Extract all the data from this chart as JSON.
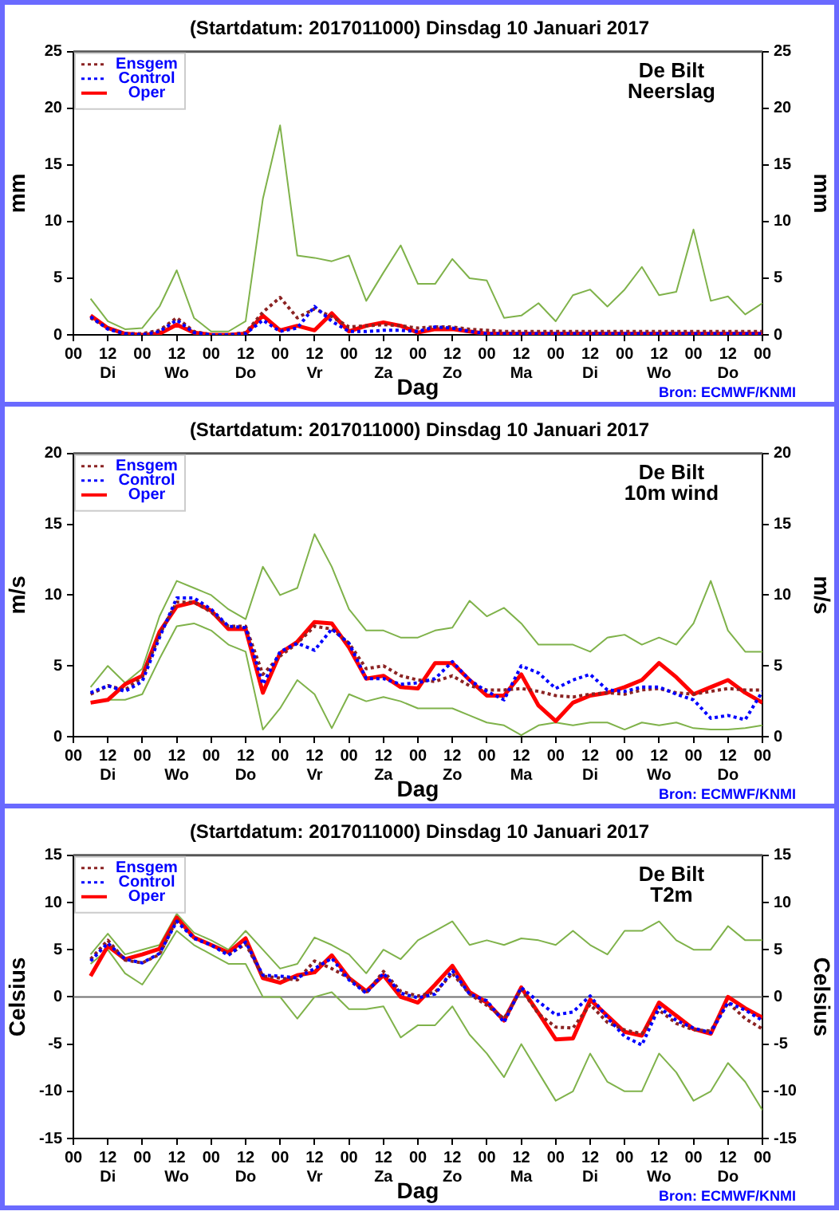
{
  "chart_data": [
    {
      "type": "line",
      "title": "(Startdatum: 2017011000) Dinsdag 10 Januari 2017",
      "xlabel": "Dag",
      "ylabel": "mm",
      "y2label": "mm",
      "annotations": [
        "De Bilt",
        "Neerslag",
        "Bron: ECMWF/KNMI"
      ],
      "x": [
        "2017-01-10T06:00",
        "2017-01-10T12:00",
        "2017-01-10T18:00",
        "2017-01-11T00:00",
        "2017-01-11T06:00",
        "2017-01-11T12:00",
        "2017-01-11T18:00",
        "2017-01-12T00:00",
        "2017-01-12T06:00",
        "2017-01-12T12:00",
        "2017-01-12T18:00",
        "2017-01-13T00:00",
        "2017-01-13T06:00",
        "2017-01-13T12:00",
        "2017-01-13T18:00",
        "2017-01-14T00:00",
        "2017-01-14T06:00",
        "2017-01-14T12:00",
        "2017-01-14T18:00",
        "2017-01-15T00:00",
        "2017-01-15T06:00",
        "2017-01-15T12:00",
        "2017-01-15T18:00",
        "2017-01-16T00:00",
        "2017-01-16T06:00",
        "2017-01-16T12:00",
        "2017-01-16T18:00",
        "2017-01-17T00:00",
        "2017-01-17T06:00",
        "2017-01-17T12:00",
        "2017-01-17T18:00",
        "2017-01-18T00:00",
        "2017-01-18T06:00",
        "2017-01-18T12:00",
        "2017-01-18T18:00",
        "2017-01-19T00:00",
        "2017-01-19T06:00",
        "2017-01-19T12:00",
        "2017-01-19T18:00",
        "2017-01-20T00:00"
      ],
      "xlim": [
        "2017-01-10T00:00",
        "2017-01-20T00:00"
      ],
      "xticks": [
        {
          "value": "2017-01-10T00:00",
          "label": "00"
        },
        {
          "value": "2017-01-10T12:00",
          "label": "12\nDi"
        },
        {
          "value": "2017-01-11T00:00",
          "label": "00"
        },
        {
          "value": "2017-01-11T12:00",
          "label": "12\nWo"
        },
        {
          "value": "2017-01-12T00:00",
          "label": "00"
        },
        {
          "value": "2017-01-12T12:00",
          "label": "12\nDo"
        },
        {
          "value": "2017-01-13T00:00",
          "label": "00"
        },
        {
          "value": "2017-01-13T12:00",
          "label": "12\nVr"
        },
        {
          "value": "2017-01-14T00:00",
          "label": "00"
        },
        {
          "value": "2017-01-14T12:00",
          "label": "12\nZa"
        },
        {
          "value": "2017-01-15T00:00",
          "label": "00"
        },
        {
          "value": "2017-01-15T12:00",
          "label": "12\nZo"
        },
        {
          "value": "2017-01-16T00:00",
          "label": "00"
        },
        {
          "value": "2017-01-16T12:00",
          "label": "12\nMa"
        },
        {
          "value": "2017-01-17T00:00",
          "label": "00"
        },
        {
          "value": "2017-01-17T12:00",
          "label": "12\nDi"
        },
        {
          "value": "2017-01-18T00:00",
          "label": "00"
        },
        {
          "value": "2017-01-18T12:00",
          "label": "12\nWo"
        },
        {
          "value": "2017-01-19T00:00",
          "label": "00"
        },
        {
          "value": "2017-01-19T12:00",
          "label": "12\nDo"
        },
        {
          "value": "2017-01-20T00:00",
          "label": "00"
        }
      ],
      "ylim": [
        0,
        25
      ],
      "yticks": [
        0,
        5,
        10,
        15,
        20,
        25
      ],
      "y2lim": [
        0,
        25
      ],
      "y2ticks": [
        0,
        5,
        10,
        15,
        20,
        25
      ],
      "grid": false,
      "legend": "top left",
      "marker": "none",
      "series": [
        {
          "color": "#7fb24a",
          "line_style": "solid",
          "values": [
            3.2,
            1.2,
            0.5,
            0.6,
            2.5,
            5.7,
            1.5,
            0.3,
            0.3,
            1.2,
            12.0,
            18.5,
            7.0,
            6.8,
            6.5,
            7.0,
            3.0,
            5.5,
            7.9,
            4.5,
            4.5,
            6.7,
            5.0,
            4.8,
            1.5,
            1.7,
            2.8,
            1.2,
            3.5,
            4.0,
            2.5,
            4.0,
            6.0,
            3.5,
            3.8,
            9.3,
            3.0,
            3.4,
            1.8,
            2.8
          ]
        },
        {
          "name": "Ensgem",
          "color": "#8b2323",
          "line_style": "dotted",
          "values": [
            1.5,
            0.6,
            0.1,
            0.1,
            0.4,
            1.5,
            0.3,
            0,
            0,
            0.2,
            2.0,
            3.3,
            1.5,
            2.3,
            1.6,
            0.7,
            0.8,
            0.9,
            0.8,
            0.6,
            0.7,
            0.7,
            0.5,
            0.4,
            0.3,
            0.3,
            0.3,
            0.3,
            0.3,
            0.3,
            0.3,
            0.3,
            0.3,
            0.3,
            0.3,
            0.3,
            0.3,
            0.3,
            0.3,
            0.3
          ]
        },
        {
          "name": "Control",
          "color": "#0000ff",
          "line_style": "dotted",
          "values": [
            1.6,
            0.5,
            0.1,
            0,
            0.3,
            1.3,
            0.2,
            0,
            0,
            0.1,
            1.3,
            0.3,
            0.6,
            2.5,
            1.2,
            0.3,
            0.3,
            0.4,
            0.4,
            0.3,
            0.7,
            0.6,
            0.3,
            0.1,
            0.1,
            0.1,
            0.1,
            0.1,
            0.1,
            0.1,
            0.1,
            0.1,
            0.1,
            0.1,
            0.1,
            0.1,
            0.1,
            0.1,
            0.1,
            0.1
          ]
        },
        {
          "name": "Oper",
          "color": "#ff0000",
          "line_style": "solid",
          "values": [
            1.7,
            0.6,
            0.1,
            0,
            0.1,
            0.9,
            0.2,
            0,
            0,
            0.1,
            1.7,
            0.4,
            0.8,
            0.4,
            1.9,
            0.3,
            0.8,
            1.1,
            0.8,
            0.2,
            0.5,
            0.5,
            0.3,
            0.1,
            0.1,
            0.1,
            0.1,
            0.1,
            0.1,
            0.1,
            0.1,
            0.1,
            0.1,
            0.1,
            0.1,
            0.1,
            0.1,
            0.1,
            0.1,
            0.1
          ]
        }
      ]
    },
    {
      "type": "line",
      "title": "(Startdatum: 2017011000) Dinsdag 10 Januari 2017",
      "xlabel": "Dag",
      "ylabel": "m/s",
      "y2label": "m/s",
      "annotations": [
        "De Bilt",
        "10m wind",
        "Bron: ECMWF/KNMI"
      ],
      "x": [
        "2017-01-10T06:00",
        "2017-01-10T12:00",
        "2017-01-10T18:00",
        "2017-01-11T00:00",
        "2017-01-11T06:00",
        "2017-01-11T12:00",
        "2017-01-11T18:00",
        "2017-01-12T00:00",
        "2017-01-12T06:00",
        "2017-01-12T12:00",
        "2017-01-12T18:00",
        "2017-01-13T00:00",
        "2017-01-13T06:00",
        "2017-01-13T12:00",
        "2017-01-13T18:00",
        "2017-01-14T00:00",
        "2017-01-14T06:00",
        "2017-01-14T12:00",
        "2017-01-14T18:00",
        "2017-01-15T00:00",
        "2017-01-15T06:00",
        "2017-01-15T12:00",
        "2017-01-15T18:00",
        "2017-01-16T00:00",
        "2017-01-16T06:00",
        "2017-01-16T12:00",
        "2017-01-16T18:00",
        "2017-01-17T00:00",
        "2017-01-17T06:00",
        "2017-01-17T12:00",
        "2017-01-17T18:00",
        "2017-01-18T00:00",
        "2017-01-18T06:00",
        "2017-01-18T12:00",
        "2017-01-18T18:00",
        "2017-01-19T00:00",
        "2017-01-19T06:00",
        "2017-01-19T12:00",
        "2017-01-19T18:00",
        "2017-01-20T00:00"
      ],
      "xlim": [
        "2017-01-10T00:00",
        "2017-01-20T00:00"
      ],
      "xticks": [
        {
          "value": "2017-01-10T00:00",
          "label": "00"
        },
        {
          "value": "2017-01-10T12:00",
          "label": "12\nDi"
        },
        {
          "value": "2017-01-11T00:00",
          "label": "00"
        },
        {
          "value": "2017-01-11T12:00",
          "label": "12\nWo"
        },
        {
          "value": "2017-01-12T00:00",
          "label": "00"
        },
        {
          "value": "2017-01-12T12:00",
          "label": "12\nDo"
        },
        {
          "value": "2017-01-13T00:00",
          "label": "00"
        },
        {
          "value": "2017-01-13T12:00",
          "label": "12\nVr"
        },
        {
          "value": "2017-01-14T00:00",
          "label": "00"
        },
        {
          "value": "2017-01-14T12:00",
          "label": "12\nZa"
        },
        {
          "value": "2017-01-15T00:00",
          "label": "00"
        },
        {
          "value": "2017-01-15T12:00",
          "label": "12\nZo"
        },
        {
          "value": "2017-01-16T00:00",
          "label": "00"
        },
        {
          "value": "2017-01-16T12:00",
          "label": "12\nMa"
        },
        {
          "value": "2017-01-17T00:00",
          "label": "00"
        },
        {
          "value": "2017-01-17T12:00",
          "label": "12\nDi"
        },
        {
          "value": "2017-01-18T00:00",
          "label": "00"
        },
        {
          "value": "2017-01-18T12:00",
          "label": "12\nWo"
        },
        {
          "value": "2017-01-19T00:00",
          "label": "00"
        },
        {
          "value": "2017-01-19T12:00",
          "label": "12\nDo"
        },
        {
          "value": "2017-01-20T00:00",
          "label": "00"
        }
      ],
      "ylim": [
        0,
        20
      ],
      "yticks": [
        0,
        5,
        10,
        15,
        20
      ],
      "y2lim": [
        0,
        20
      ],
      "y2ticks": [
        0,
        5,
        10,
        15,
        20
      ],
      "grid": false,
      "legend": "top left",
      "marker": "none",
      "series": [
        {
          "color": "#7fb24a",
          "line_style": "solid",
          "values": [
            3.5,
            5.0,
            3.8,
            4.8,
            8.5,
            11.0,
            10.5,
            10.0,
            9.0,
            8.3,
            12.0,
            10.0,
            10.5,
            14.3,
            12.0,
            9.0,
            7.5,
            7.5,
            7.0,
            7.0,
            7.5,
            7.7,
            9.6,
            8.5,
            9.1,
            8.0,
            6.5,
            6.5,
            6.5,
            6.0,
            7.0,
            7.2,
            6.5,
            7.0,
            6.5,
            8.0,
            11.0,
            7.5,
            6.0,
            6.0
          ]
        },
        {
          "color": "#7fb24a",
          "line_style": "solid",
          "values": [
            null,
            2.6,
            2.6,
            3.0,
            5.5,
            7.8,
            8.0,
            7.5,
            6.5,
            6.0,
            0.5,
            2.0,
            4.0,
            3.0,
            0.6,
            3.0,
            2.5,
            2.8,
            2.5,
            2.0,
            2.0,
            2.0,
            1.5,
            1.0,
            0.8,
            0.1,
            0.8,
            1.0,
            0.8,
            1.0,
            1.0,
            0.5,
            1.0,
            0.8,
            1.0,
            0.6,
            0.5,
            0.5,
            0.6,
            0.8
          ]
        },
        {
          "name": "Ensgem",
          "color": "#8b2323",
          "line_style": "dotted",
          "values": [
            3.0,
            3.6,
            3.3,
            4.2,
            7.2,
            9.5,
            9.5,
            8.8,
            7.8,
            7.8,
            4.4,
            5.7,
            6.6,
            7.8,
            7.6,
            6.6,
            4.8,
            5.0,
            4.3,
            4.0,
            3.9,
            4.3,
            3.6,
            3.3,
            3.3,
            3.4,
            3.2,
            2.9,
            2.8,
            3.0,
            3.1,
            3.0,
            3.3,
            3.4,
            3.1,
            3.0,
            3.2,
            3.4,
            3.3,
            3.3
          ]
        },
        {
          "name": "Control",
          "color": "#0000ff",
          "line_style": "dotted",
          "values": [
            3.1,
            3.6,
            3.2,
            3.9,
            7.0,
            9.8,
            9.8,
            9.0,
            7.8,
            7.7,
            3.7,
            6.0,
            6.6,
            6.1,
            7.6,
            6.6,
            4.1,
            4.1,
            3.7,
            3.8,
            4.1,
            5.3,
            4.0,
            3.2,
            2.6,
            5.0,
            4.5,
            3.4,
            4.0,
            4.4,
            3.3,
            3.2,
            3.5,
            3.5,
            3.0,
            2.6,
            1.3,
            1.5,
            1.2,
            3.2
          ]
        },
        {
          "name": "Oper",
          "color": "#ff0000",
          "line_style": "solid",
          "values": [
            2.4,
            2.6,
            3.7,
            4.3,
            7.4,
            9.2,
            9.5,
            8.9,
            7.6,
            7.6,
            3.1,
            5.9,
            6.7,
            8.1,
            8.0,
            6.3,
            4.1,
            4.3,
            3.5,
            3.4,
            5.2,
            5.2,
            4.0,
            2.9,
            2.9,
            4.4,
            2.2,
            1.1,
            2.4,
            2.9,
            3.1,
            3.5,
            4.0,
            5.2,
            4.2,
            3.0,
            3.5,
            4.0,
            3.1,
            2.4
          ]
        }
      ]
    },
    {
      "type": "line",
      "title": "(Startdatum: 2017011000) Dinsdag 10 Januari 2017",
      "xlabel": "Dag",
      "ylabel": "Celsius",
      "y2label": "Celsius",
      "annotations": [
        "De Bilt",
        "T2m",
        "Bron: ECMWF/KNMI"
      ],
      "x": [
        "2017-01-10T06:00",
        "2017-01-10T12:00",
        "2017-01-10T18:00",
        "2017-01-11T00:00",
        "2017-01-11T06:00",
        "2017-01-11T12:00",
        "2017-01-11T18:00",
        "2017-01-12T00:00",
        "2017-01-12T06:00",
        "2017-01-12T12:00",
        "2017-01-12T18:00",
        "2017-01-13T00:00",
        "2017-01-13T06:00",
        "2017-01-13T12:00",
        "2017-01-13T18:00",
        "2017-01-14T00:00",
        "2017-01-14T06:00",
        "2017-01-14T12:00",
        "2017-01-14T18:00",
        "2017-01-15T00:00",
        "2017-01-15T06:00",
        "2017-01-15T12:00",
        "2017-01-15T18:00",
        "2017-01-16T00:00",
        "2017-01-16T06:00",
        "2017-01-16T12:00",
        "2017-01-16T18:00",
        "2017-01-17T00:00",
        "2017-01-17T06:00",
        "2017-01-17T12:00",
        "2017-01-17T18:00",
        "2017-01-18T00:00",
        "2017-01-18T06:00",
        "2017-01-18T12:00",
        "2017-01-18T18:00",
        "2017-01-19T00:00",
        "2017-01-19T06:00",
        "2017-01-19T12:00",
        "2017-01-19T18:00",
        "2017-01-20T00:00"
      ],
      "xlim": [
        "2017-01-10T00:00",
        "2017-01-20T00:00"
      ],
      "xticks": [
        {
          "value": "2017-01-10T00:00",
          "label": "00"
        },
        {
          "value": "2017-01-10T12:00",
          "label": "12\nDi"
        },
        {
          "value": "2017-01-11T00:00",
          "label": "00"
        },
        {
          "value": "2017-01-11T12:00",
          "label": "12\nWo"
        },
        {
          "value": "2017-01-12T00:00",
          "label": "00"
        },
        {
          "value": "2017-01-12T12:00",
          "label": "12\nDo"
        },
        {
          "value": "2017-01-13T00:00",
          "label": "00"
        },
        {
          "value": "2017-01-13T12:00",
          "label": "12\nVr"
        },
        {
          "value": "2017-01-14T00:00",
          "label": "00"
        },
        {
          "value": "2017-01-14T12:00",
          "label": "12\nZa"
        },
        {
          "value": "2017-01-15T00:00",
          "label": "00"
        },
        {
          "value": "2017-01-15T12:00",
          "label": "12\nZo"
        },
        {
          "value": "2017-01-16T00:00",
          "label": "00"
        },
        {
          "value": "2017-01-16T12:00",
          "label": "12\nMa"
        },
        {
          "value": "2017-01-17T00:00",
          "label": "00"
        },
        {
          "value": "2017-01-17T12:00",
          "label": "12\nDi"
        },
        {
          "value": "2017-01-18T00:00",
          "label": "00"
        },
        {
          "value": "2017-01-18T12:00",
          "label": "12\nWo"
        },
        {
          "value": "2017-01-19T00:00",
          "label": "00"
        },
        {
          "value": "2017-01-19T12:00",
          "label": "12\nDo"
        },
        {
          "value": "2017-01-20T00:00",
          "label": "00"
        }
      ],
      "ylim": [
        -15,
        15
      ],
      "yticks": [
        -15,
        -10,
        -5,
        0,
        5,
        10,
        15
      ],
      "y2lim": [
        -15,
        15
      ],
      "y2ticks": [
        -15,
        -10,
        -5,
        0,
        5,
        10,
        15
      ],
      "grid": false,
      "legend": "top left",
      "marker": "none",
      "ref_lines": [
        {
          "axis": "y",
          "value": 0,
          "color": "#707070"
        }
      ],
      "series": [
        {
          "color": "#7fb24a",
          "line_style": "solid",
          "values": [
            4.5,
            6.7,
            4.5,
            5.0,
            5.5,
            8.8,
            6.8,
            6.0,
            5.0,
            7.0,
            5.0,
            3.0,
            3.5,
            6.3,
            5.5,
            4.5,
            2.5,
            5.0,
            4.0,
            6.0,
            7.0,
            8.0,
            5.5,
            6.0,
            5.5,
            6.2,
            6.0,
            5.5,
            7.0,
            5.5,
            4.5,
            7.0,
            7.0,
            8.0,
            6.0,
            5.0,
            5.0,
            7.5,
            6.0,
            6.0
          ]
        },
        {
          "color": "#7fb24a",
          "line_style": "solid",
          "values": [
            3.5,
            5.0,
            2.5,
            1.3,
            4.0,
            7.0,
            5.5,
            4.5,
            3.5,
            3.5,
            0.0,
            0.0,
            -2.3,
            0.0,
            0.5,
            -1.3,
            -1.3,
            -1.0,
            -4.3,
            -3.0,
            -3.0,
            -1.0,
            -4.0,
            -6.0,
            -8.5,
            -5.0,
            -8.0,
            -11.0,
            -10.0,
            -6.0,
            -9.0,
            -10.0,
            -10.0,
            -6.0,
            -8.0,
            -11.0,
            -10.0,
            -7.0,
            -9.0,
            -12.0
          ]
        },
        {
          "name": "Ensgem",
          "color": "#8b2323",
          "line_style": "dotted",
          "values": [
            4.0,
            6.0,
            3.9,
            3.6,
            4.5,
            8.2,
            6.2,
            5.5,
            4.5,
            5.6,
            2.2,
            2.0,
            1.8,
            3.8,
            3.0,
            2.0,
            0.4,
            2.7,
            0.6,
            0.1,
            0.5,
            2.5,
            0.3,
            -0.9,
            -2.3,
            0.8,
            -1.8,
            -3.2,
            -3.3,
            -0.8,
            -2.7,
            -3.5,
            -3.9,
            -1.4,
            -2.8,
            -3.5,
            -3.6,
            -0.6,
            -2.3,
            -3.4
          ]
        },
        {
          "name": "Control",
          "color": "#0000ff",
          "line_style": "dotted",
          "values": [
            3.8,
            5.7,
            4.0,
            3.6,
            4.6,
            8.0,
            6.2,
            5.5,
            4.4,
            5.8,
            2.3,
            2.2,
            2.0,
            3.0,
            4.1,
            1.8,
            0.4,
            2.5,
            0.4,
            -0.1,
            0.3,
            2.8,
            0.3,
            -0.4,
            -2.7,
            1.0,
            -0.5,
            -1.9,
            -1.6,
            0.1,
            -2.2,
            -4.2,
            -5.1,
            -1.1,
            -2.5,
            -3.3,
            -3.8,
            -0.6,
            -1.4,
            -2.5
          ]
        },
        {
          "name": "Oper",
          "color": "#ff0000",
          "line_style": "solid",
          "values": [
            2.2,
            5.4,
            4.0,
            4.5,
            5.1,
            8.4,
            6.3,
            5.5,
            4.7,
            6.2,
            2.0,
            1.5,
            2.3,
            2.6,
            4.4,
            2.0,
            0.6,
            2.3,
            0.0,
            -0.6,
            1.3,
            3.3,
            0.5,
            -0.6,
            -2.5,
            1.0,
            -1.7,
            -4.5,
            -4.4,
            -0.3,
            -2.0,
            -3.7,
            -4.1,
            -0.6,
            -2.0,
            -3.4,
            -3.9,
            0.0,
            -1.2,
            -2.2
          ]
        }
      ]
    }
  ]
}
